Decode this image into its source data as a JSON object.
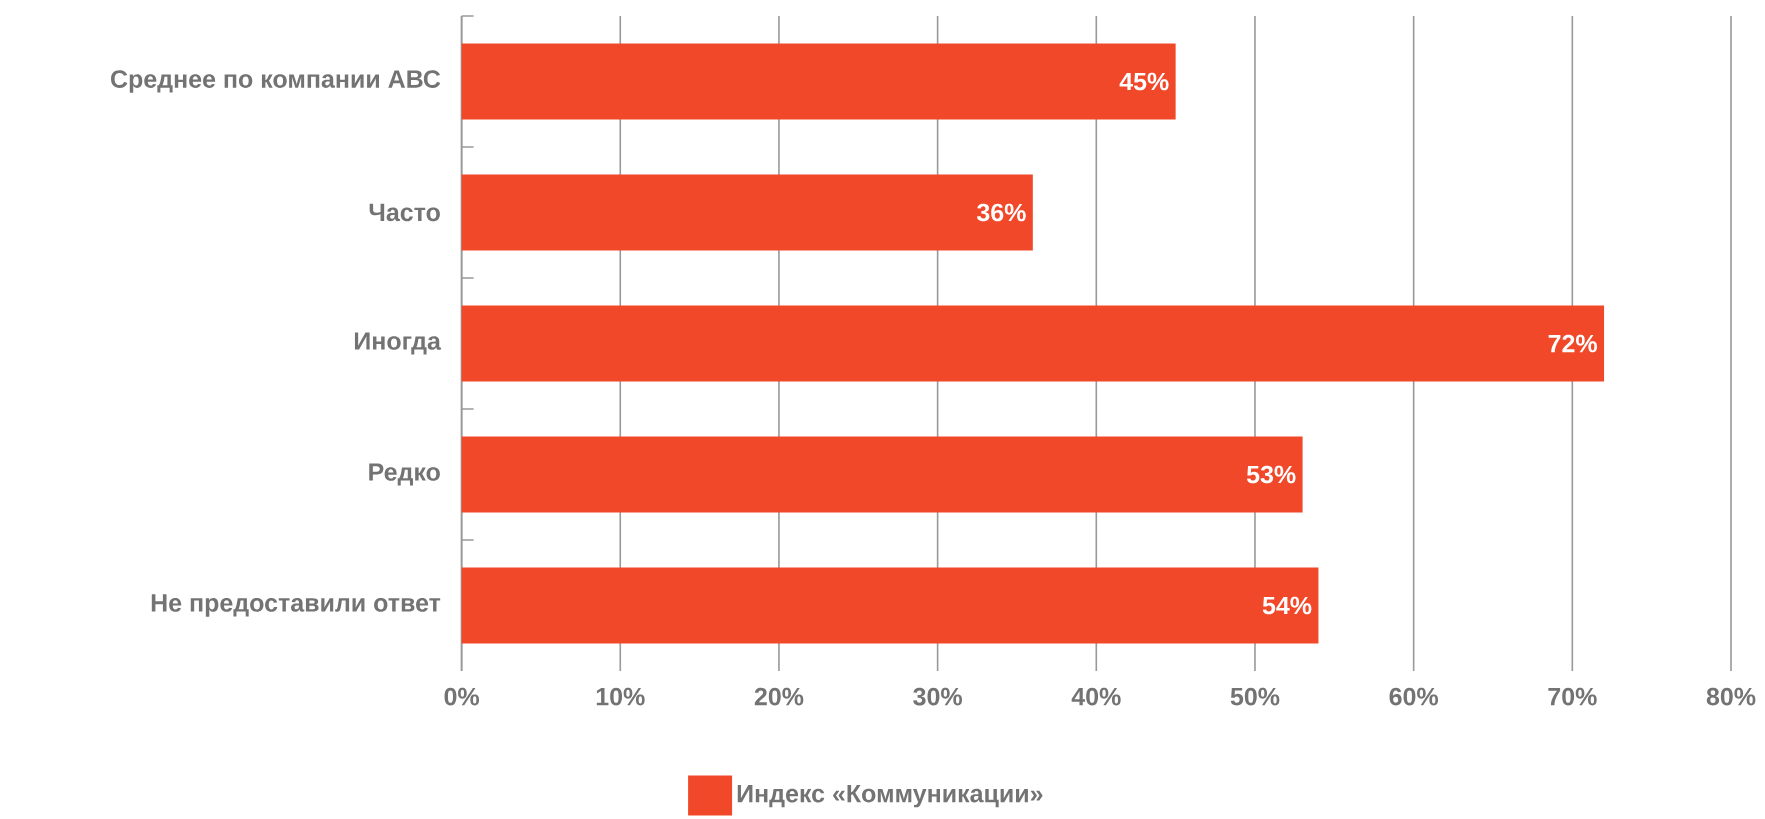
{
  "chart_data": {
    "type": "bar",
    "orientation": "horizontal",
    "categories": [
      "Среднее по компании АВС",
      "Часто",
      "Иногда",
      "Редко",
      "Не предоставили ответ"
    ],
    "series": [
      {
        "name": "Индекс «Коммуникации»",
        "color": "#f2482a",
        "values": [
          45,
          36,
          72,
          53,
          54
        ],
        "value_labels": [
          "45%",
          "36%",
          "72%",
          "53%",
          "54%"
        ]
      }
    ],
    "xlim": [
      0,
      80
    ],
    "xticks": [
      {
        "value": 0,
        "label": "0%"
      },
      {
        "value": 10,
        "label": "10%"
      },
      {
        "value": 20,
        "label": "20%"
      },
      {
        "value": 30,
        "label": "30%"
      },
      {
        "value": 40,
        "label": "40%"
      },
      {
        "value": 50,
        "label": "50%"
      },
      {
        "value": 60,
        "label": "60%"
      },
      {
        "value": 70,
        "label": "70%"
      },
      {
        "value": 80,
        "label": "80%"
      }
    ],
    "grid": "x",
    "legend": "bottom"
  }
}
